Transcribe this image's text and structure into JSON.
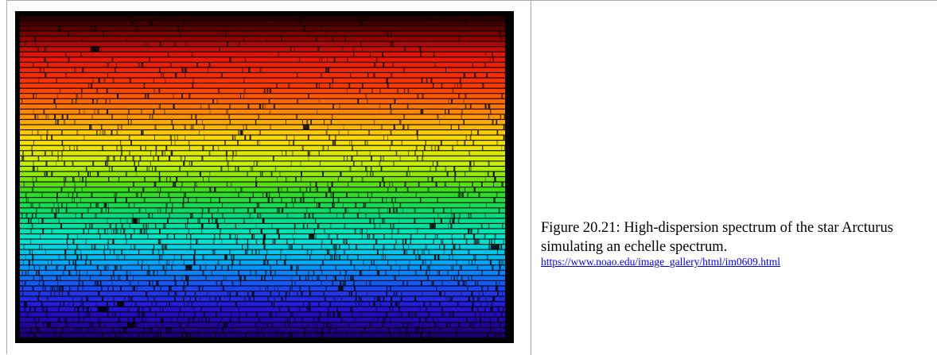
{
  "figure": {
    "caption": "Figure 20.21:  High-dispersion spectrum of the star Arcturus simulating an echelle spectrum.",
    "source_url": "https://www.noao.edu/image_gallery/html/im0609.html",
    "image_subject": "arcturus-echelle-spectrum"
  }
}
